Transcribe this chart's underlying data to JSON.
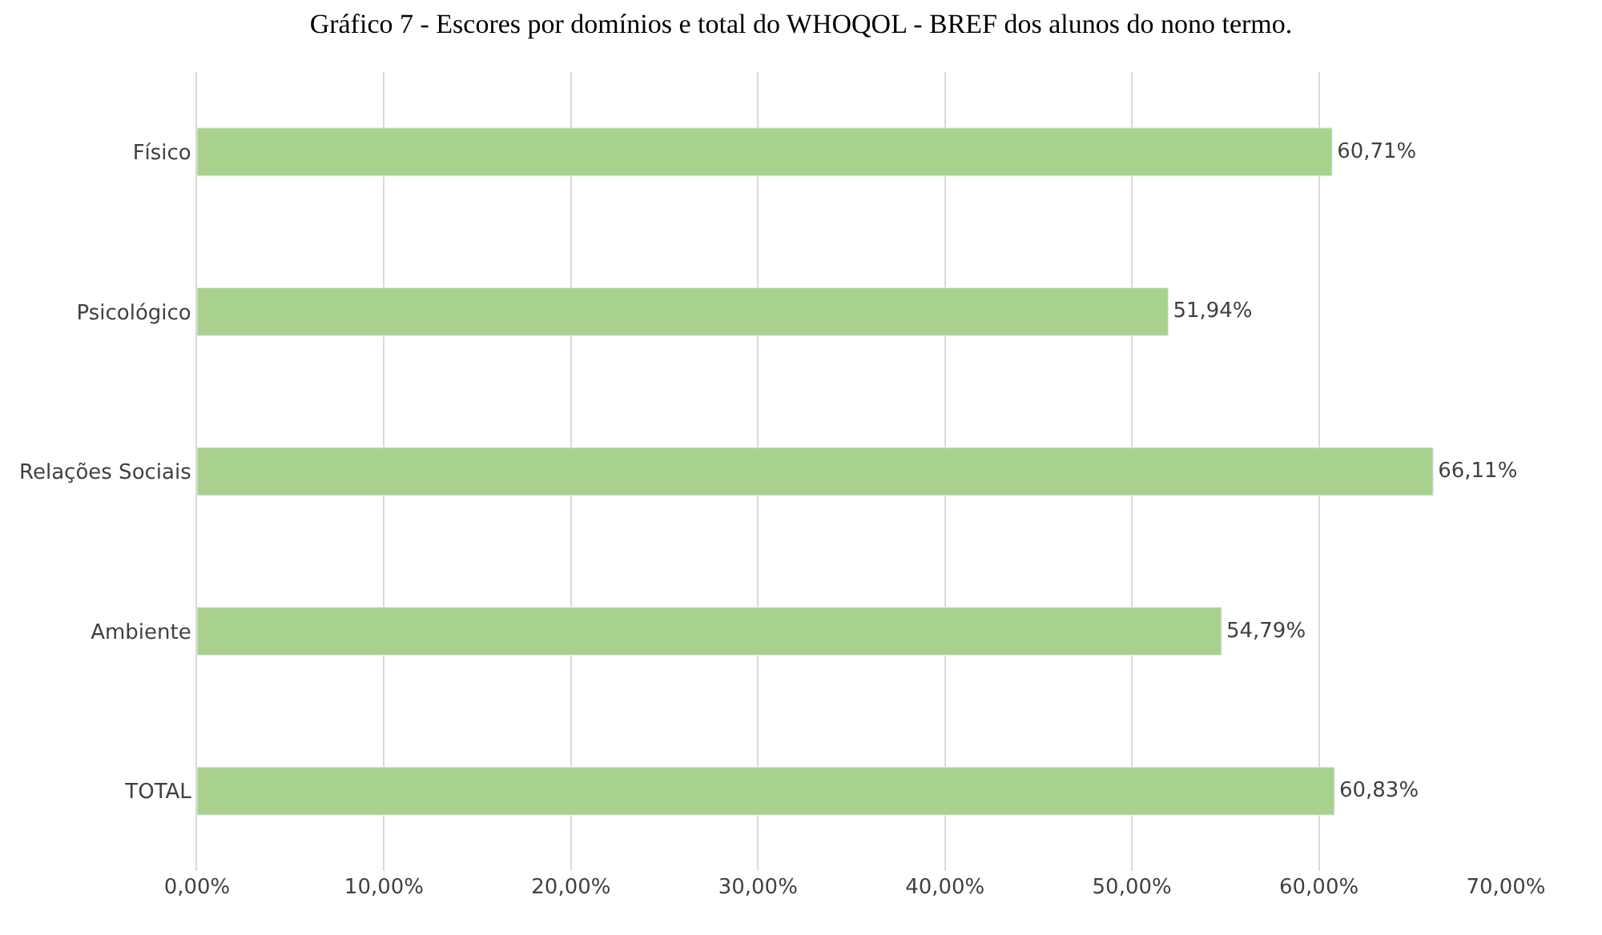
{
  "chart_data": {
    "type": "bar",
    "orientation": "horizontal",
    "title": "Gráfico 7 - Escores por domínios e total do WHOQOL - BREF dos alunos do nono termo.",
    "categories": [
      "Físico",
      "Psicológico",
      "Relações Sociais",
      "Ambiente",
      "TOTAL"
    ],
    "values": [
      60.71,
      51.94,
      66.11,
      54.79,
      60.83
    ],
    "value_labels": [
      "60,71%",
      "51,94%",
      "66,11%",
      "54,79%",
      "60,83%"
    ],
    "color": "#a9d18e",
    "xlim": [
      0,
      70
    ],
    "xticks": [
      {
        "value": 0,
        "label": "0,00%"
      },
      {
        "value": 10,
        "label": "10,00%"
      },
      {
        "value": 20,
        "label": "20,00%"
      },
      {
        "value": 30,
        "label": "30,00%"
      },
      {
        "value": 40,
        "label": "40,00%"
      },
      {
        "value": 50,
        "label": "50,00%"
      },
      {
        "value": 60,
        "label": "60,00%"
      },
      {
        "value": 70,
        "label": "70,00%"
      }
    ],
    "grid": "x",
    "legend": false
  }
}
